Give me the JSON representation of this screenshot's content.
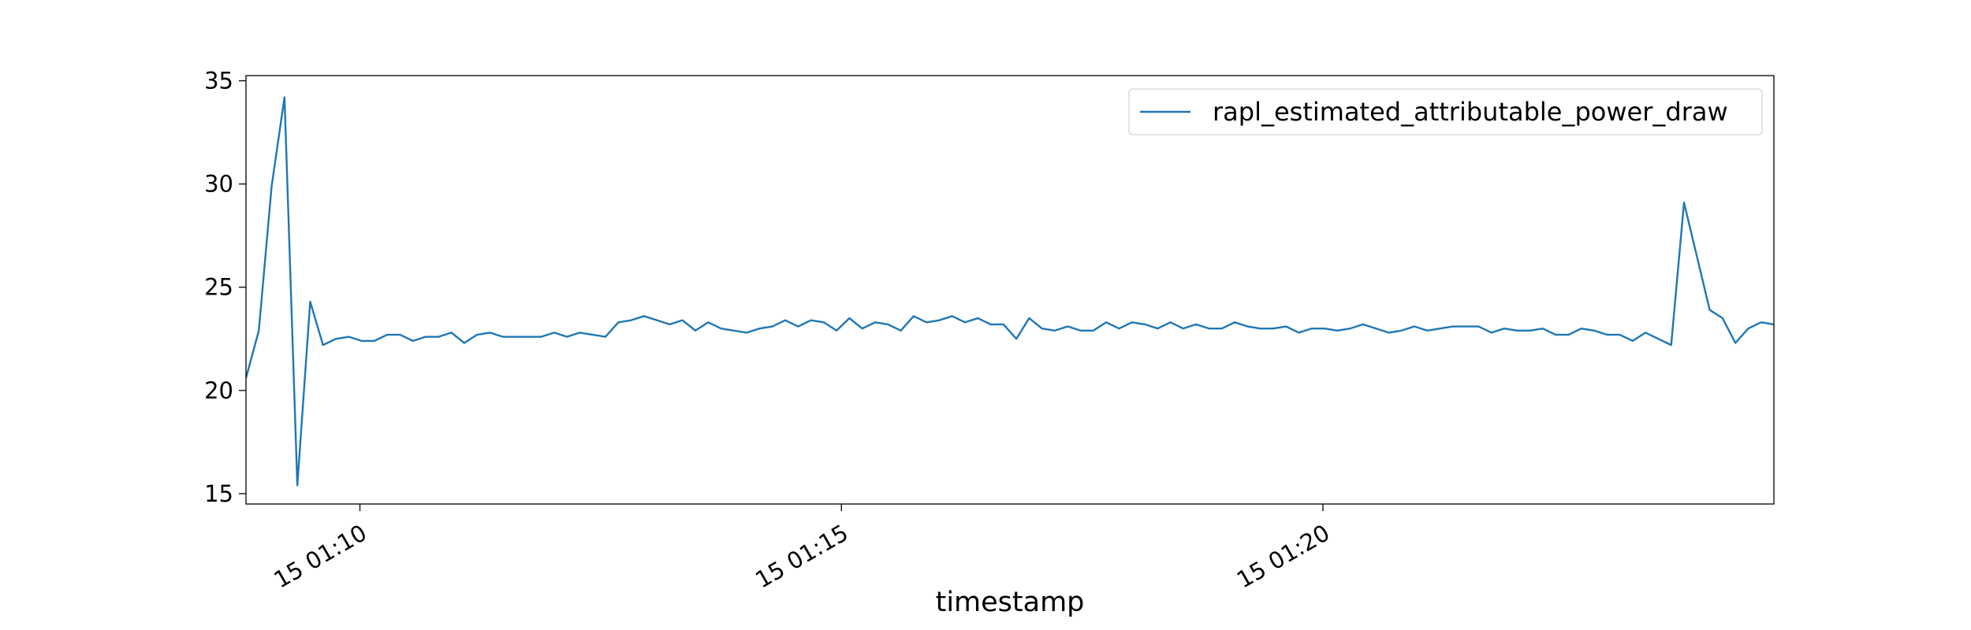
{
  "chart_data": {
    "type": "line",
    "xlabel": "timestamp",
    "x": [
      "15 01:08:49",
      "15 01:08:57",
      "15 01:09:05",
      "15 01:09:13",
      "15 01:09:21",
      "15 01:09:29",
      "15 01:09:37",
      "15 01:09:45",
      "15 01:09:53",
      "15 01:10:01",
      "15 01:10:09",
      "15 01:10:17",
      "15 01:10:25",
      "15 01:10:33",
      "15 01:10:41",
      "15 01:10:49",
      "15 01:10:57",
      "15 01:11:05",
      "15 01:11:13",
      "15 01:11:21",
      "15 01:11:29",
      "15 01:11:37",
      "15 01:11:45",
      "15 01:11:53",
      "15 01:12:01",
      "15 01:12:09",
      "15 01:12:17",
      "15 01:12:25",
      "15 01:12:33",
      "15 01:12:41",
      "15 01:12:49",
      "15 01:12:57",
      "15 01:13:05",
      "15 01:13:13",
      "15 01:13:21",
      "15 01:13:29",
      "15 01:13:37",
      "15 01:13:45",
      "15 01:13:53",
      "15 01:14:01",
      "15 01:14:09",
      "15 01:14:17",
      "15 01:14:25",
      "15 01:14:33",
      "15 01:14:41",
      "15 01:14:49",
      "15 01:14:57",
      "15 01:15:05",
      "15 01:15:13",
      "15 01:15:21",
      "15 01:15:29",
      "15 01:15:37",
      "15 01:15:45",
      "15 01:15:53",
      "15 01:16:01",
      "15 01:16:09",
      "15 01:16:17",
      "15 01:16:25",
      "15 01:16:33",
      "15 01:16:41",
      "15 01:16:49",
      "15 01:16:57",
      "15 01:17:05",
      "15 01:17:13",
      "15 01:17:21",
      "15 01:17:29",
      "15 01:17:37",
      "15 01:17:45",
      "15 01:17:53",
      "15 01:18:01",
      "15 01:18:09",
      "15 01:18:17",
      "15 01:18:25",
      "15 01:18:33",
      "15 01:18:41",
      "15 01:18:49",
      "15 01:18:57",
      "15 01:19:05",
      "15 01:19:13",
      "15 01:19:21",
      "15 01:19:29",
      "15 01:19:37",
      "15 01:19:45",
      "15 01:19:53",
      "15 01:20:01",
      "15 01:20:09",
      "15 01:20:17",
      "15 01:20:25",
      "15 01:20:33",
      "15 01:20:41",
      "15 01:20:49",
      "15 01:20:57",
      "15 01:21:05",
      "15 01:21:13",
      "15 01:21:21",
      "15 01:21:29",
      "15 01:21:37",
      "15 01:21:45",
      "15 01:21:53",
      "15 01:22:01",
      "15 01:22:09",
      "15 01:22:17",
      "15 01:22:25",
      "15 01:22:33",
      "15 01:22:41",
      "15 01:22:49",
      "15 01:22:57",
      "15 01:23:05",
      "15 01:23:13",
      "15 01:23:21",
      "15 01:23:29",
      "15 01:23:37",
      "15 01:23:45",
      "15 01:23:53",
      "15 01:24:01",
      "15 01:24:09",
      "15 01:24:17",
      "15 01:24:25",
      "15 01:24:33",
      "15 01:24:41"
    ],
    "series": [
      {
        "name": "rapl_estimated_attributable_power_draw",
        "color": "#1f77b4",
        "values": [
          20.6,
          22.9,
          29.9,
          34.2,
          15.4,
          24.3,
          22.2,
          22.5,
          22.6,
          22.4,
          22.4,
          22.7,
          22.7,
          22.4,
          22.6,
          22.6,
          22.8,
          22.3,
          22.7,
          22.8,
          22.6,
          22.6,
          22.6,
          22.6,
          22.8,
          22.6,
          22.8,
          22.7,
          22.6,
          23.3,
          23.4,
          23.6,
          23.4,
          23.2,
          23.4,
          22.9,
          23.3,
          23.0,
          22.9,
          22.8,
          23.0,
          23.1,
          23.4,
          23.1,
          23.4,
          23.3,
          22.9,
          23.5,
          23.0,
          23.3,
          23.2,
          22.9,
          23.6,
          23.3,
          23.4,
          23.6,
          23.3,
          23.5,
          23.2,
          23.2,
          22.5,
          23.5,
          23.0,
          22.9,
          23.1,
          22.9,
          22.9,
          23.3,
          23.0,
          23.3,
          23.2,
          23.0,
          23.3,
          23.0,
          23.2,
          23.0,
          23.0,
          23.3,
          23.1,
          23.0,
          23.0,
          23.1,
          22.8,
          23.0,
          23.0,
          22.9,
          23.0,
          23.2,
          23.0,
          22.8,
          22.9,
          23.1,
          22.9,
          23.0,
          23.1,
          23.1,
          23.1,
          22.8,
          23.0,
          22.9,
          22.9,
          23.0,
          22.7,
          22.7,
          23.0,
          22.9,
          22.7,
          22.7,
          22.4,
          22.8,
          22.5,
          22.2,
          29.1,
          26.5,
          23.9,
          23.5,
          22.3,
          23.0,
          23.3,
          23.2
        ]
      }
    ],
    "xlim": [
      "15 01:08:49",
      "15 01:24:41"
    ],
    "xticks": [
      "15 01:10",
      "15 01:15",
      "15 01:20"
    ],
    "ylim": [
      14.5,
      35.25
    ],
    "yticks": [
      15,
      20,
      25,
      30,
      35
    ],
    "legend": "upper right"
  }
}
